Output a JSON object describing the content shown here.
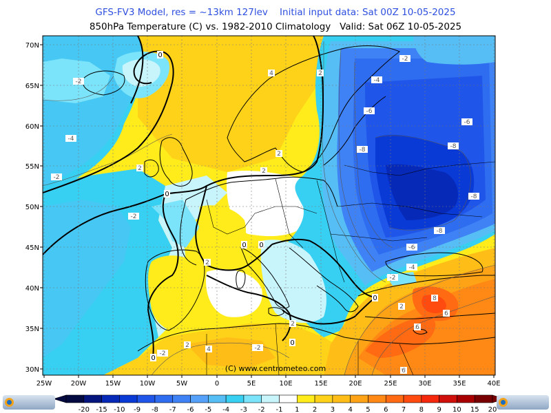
{
  "header": {
    "title_line1": "GFS-FV3 Model, res = ~13km 127lev    Initial input data: Sat 00Z 10-05-2025",
    "title_line2": "850hPa Temperature (C) vs. 1982-2010 Climatology   Valid: Sat 06Z 10-05-2025"
  },
  "map": {
    "lat_labels": [
      "70N",
      "65N",
      "60N",
      "55N",
      "50N",
      "45N",
      "40N",
      "35N",
      "30N"
    ],
    "lon_labels": [
      "25W",
      "20W",
      "15W",
      "10W",
      "5W",
      "0",
      "5E",
      "10E",
      "15E",
      "20E",
      "25E",
      "30E",
      "35E",
      "40E"
    ],
    "credit": "(C)  www.centrometeo.com",
    "contour_labels": [
      {
        "text": "-2"
      },
      {
        "text": "-4"
      },
      {
        "text": "-2"
      },
      {
        "text": "-2"
      },
      {
        "text": "2"
      },
      {
        "text": "4"
      },
      {
        "text": "2"
      },
      {
        "text": "2"
      },
      {
        "text": "2"
      },
      {
        "text": "2"
      },
      {
        "text": "-4"
      },
      {
        "text": "-6"
      },
      {
        "text": "-8"
      },
      {
        "text": "-6"
      },
      {
        "text": "-8"
      },
      {
        "text": "-8"
      },
      {
        "text": "-6"
      },
      {
        "text": "-4"
      },
      {
        "text": "-2"
      },
      {
        "text": "-2"
      },
      {
        "text": "-2"
      },
      {
        "text": "2"
      },
      {
        "text": "4"
      },
      {
        "text": "2"
      },
      {
        "text": "-2"
      },
      {
        "text": "2"
      },
      {
        "text": "6"
      },
      {
        "text": "6"
      },
      {
        "text": "6"
      },
      {
        "text": "8"
      },
      {
        "text": "-8"
      }
    ],
    "zero_labels": [
      "0",
      "0",
      "0",
      "0",
      "0",
      "0",
      "0"
    ]
  },
  "legend": {
    "values": [
      "-20",
      "-15",
      "-10",
      "-9",
      "-8",
      "-7",
      "-6",
      "-5",
      "-4",
      "-3",
      "-2",
      "-1",
      "1",
      "2",
      "3",
      "4",
      "5",
      "6",
      "7",
      "8",
      "9",
      "10",
      "15",
      "20"
    ],
    "colors": [
      "#020a40",
      "#04157e",
      "#0629b8",
      "#0a3ad6",
      "#1f55e8",
      "#2e6cf0",
      "#3f82f5",
      "#55a0f8",
      "#56bdf5",
      "#38d0f2",
      "#7be4fa",
      "#c8f4fc",
      "#ffffff",
      "#ffec1a",
      "#ffd21a",
      "#ffbd18",
      "#ffa316",
      "#ff8914",
      "#ff6a12",
      "#ff4a10",
      "#f5270c",
      "#d0100a",
      "#a80000",
      "#780000"
    ]
  },
  "logos": {
    "left": "centrometeo",
    "right": "centrometeo"
  }
}
